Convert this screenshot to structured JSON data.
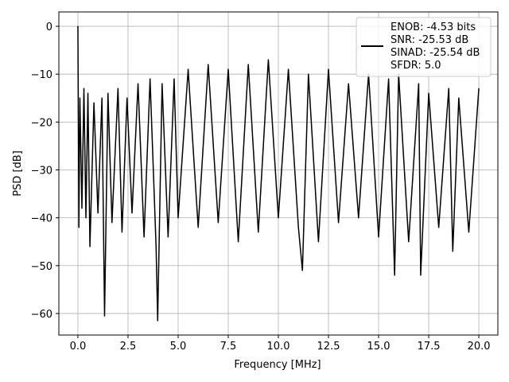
{
  "chart_data": {
    "type": "line",
    "xlabel": "Frequency [MHz]",
    "ylabel": "PSD [dB]",
    "xlim": [
      -0.95,
      20.95
    ],
    "ylim": [
      -64.5,
      3
    ],
    "xticks": [
      0.0,
      2.5,
      5.0,
      7.5,
      10.0,
      12.5,
      15.0,
      17.5,
      20.0
    ],
    "xtick_labels": [
      "0.0",
      "2.5",
      "5.0",
      "7.5",
      "10.0",
      "12.5",
      "15.0",
      "17.5",
      "20.0"
    ],
    "yticks": [
      0,
      -10,
      -20,
      -30,
      -40,
      -50,
      -60
    ],
    "ytick_labels": [
      "0",
      "−10",
      "−20",
      "−30",
      "−40",
      "−50",
      "−60"
    ],
    "grid": true,
    "legend_placement": "upper-right",
    "legend_lines": [
      "ENOB: -4.53 bits",
      "SNR: -25.53 dB",
      "SINAD: -25.54 dB",
      "SFDR: 5.0"
    ],
    "series": [
      {
        "color": "#000000",
        "x": [
          0,
          0.05,
          0.1,
          0.2,
          0.3,
          0.4,
          0.5,
          0.6,
          0.8,
          1.0,
          1.2,
          1.33,
          1.5,
          1.7,
          2.0,
          2.2,
          2.45,
          2.7,
          3.0,
          3.3,
          3.6,
          3.9,
          3.98,
          4.2,
          4.5,
          4.8,
          5.0,
          5.5,
          6.0,
          6.5,
          7.0,
          7.5,
          8.0,
          8.5,
          9.0,
          9.5,
          10.0,
          10.5,
          11.0,
          11.2,
          11.5,
          12.0,
          12.5,
          13.0,
          13.5,
          14.0,
          14.5,
          15.0,
          15.5,
          15.8,
          16.0,
          16.5,
          17.0,
          17.1,
          17.5,
          18.0,
          18.5,
          18.7,
          19.0,
          19.5,
          20.0
        ],
        "y": [
          0,
          -42,
          -15,
          -38,
          -13,
          -40,
          -14,
          -46,
          -16,
          -39,
          -15,
          -60.5,
          -14,
          -41,
          -13,
          -43,
          -15,
          -39,
          -12,
          -44,
          -11,
          -46,
          -61.5,
          -12,
          -44,
          -11,
          -40,
          -9,
          -42,
          -8,
          -41,
          -9,
          -45,
          -8,
          -43,
          -7,
          -40,
          -9,
          -42,
          -51,
          -10,
          -45,
          -9,
          -41,
          -12,
          -40,
          -10,
          -44,
          -11,
          -52,
          -10,
          -45,
          -12,
          -52,
          -14,
          -42,
          -13,
          -47,
          -15,
          -43,
          -13
        ]
      }
    ]
  }
}
